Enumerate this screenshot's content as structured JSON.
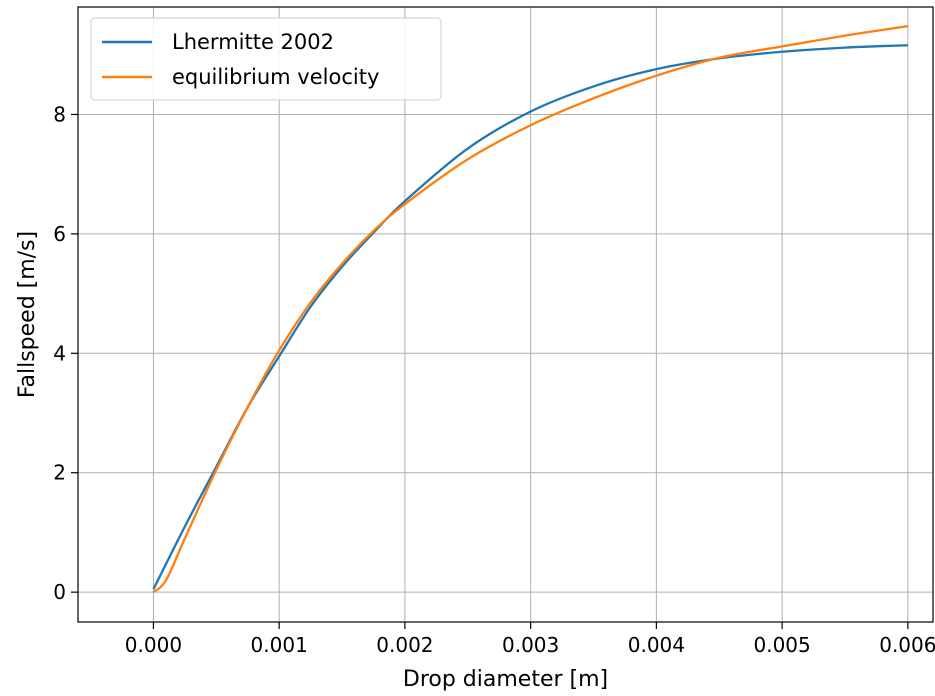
{
  "chart_data": {
    "type": "line",
    "title": "",
    "xlabel": "Drop diameter [m]",
    "ylabel": "Fallspeed  [m/s]",
    "xlim": [
      -0.0006,
      0.0062
    ],
    "ylim": [
      -0.5,
      9.8
    ],
    "grid": true,
    "legend_position": "top-left",
    "xticks": [
      0.0,
      0.001,
      0.002,
      0.003,
      0.004,
      0.005,
      0.006
    ],
    "xtick_labels": [
      "0.000",
      "0.001",
      "0.002",
      "0.003",
      "0.004",
      "0.005",
      "0.006"
    ],
    "yticks": [
      0,
      2,
      4,
      6,
      8
    ],
    "ytick_labels": [
      "0",
      "2",
      "4",
      "6",
      "8"
    ],
    "series": [
      {
        "name": "Lhermitte 2002",
        "color": "#1f77b4",
        "x": [
          0,
          0.00025,
          0.0005,
          0.00075,
          0.001,
          0.00125,
          0.0015,
          0.00175,
          0.002,
          0.0025,
          0.003,
          0.0035,
          0.004,
          0.0045,
          0.005,
          0.0055,
          0.006
        ],
        "y": [
          0.05,
          1.1,
          2.1,
          3.1,
          3.95,
          4.78,
          5.45,
          6.02,
          6.55,
          7.43,
          8.05,
          8.47,
          8.76,
          8.94,
          9.05,
          9.12,
          9.16
        ]
      },
      {
        "name": "equilibrium velocity",
        "color": "#ff7f0e",
        "x": [
          0,
          0.0001,
          0.00025,
          0.0005,
          0.00075,
          0.001,
          0.00125,
          0.0015,
          0.00175,
          0.002,
          0.0025,
          0.003,
          0.0035,
          0.004,
          0.0045,
          0.005,
          0.0055,
          0.006
        ],
        "y": [
          0.0,
          0.2,
          0.9,
          2.05,
          3.1,
          4.05,
          4.85,
          5.5,
          6.05,
          6.5,
          7.25,
          7.82,
          8.27,
          8.65,
          8.95,
          9.14,
          9.32,
          9.48
        ]
      }
    ]
  }
}
